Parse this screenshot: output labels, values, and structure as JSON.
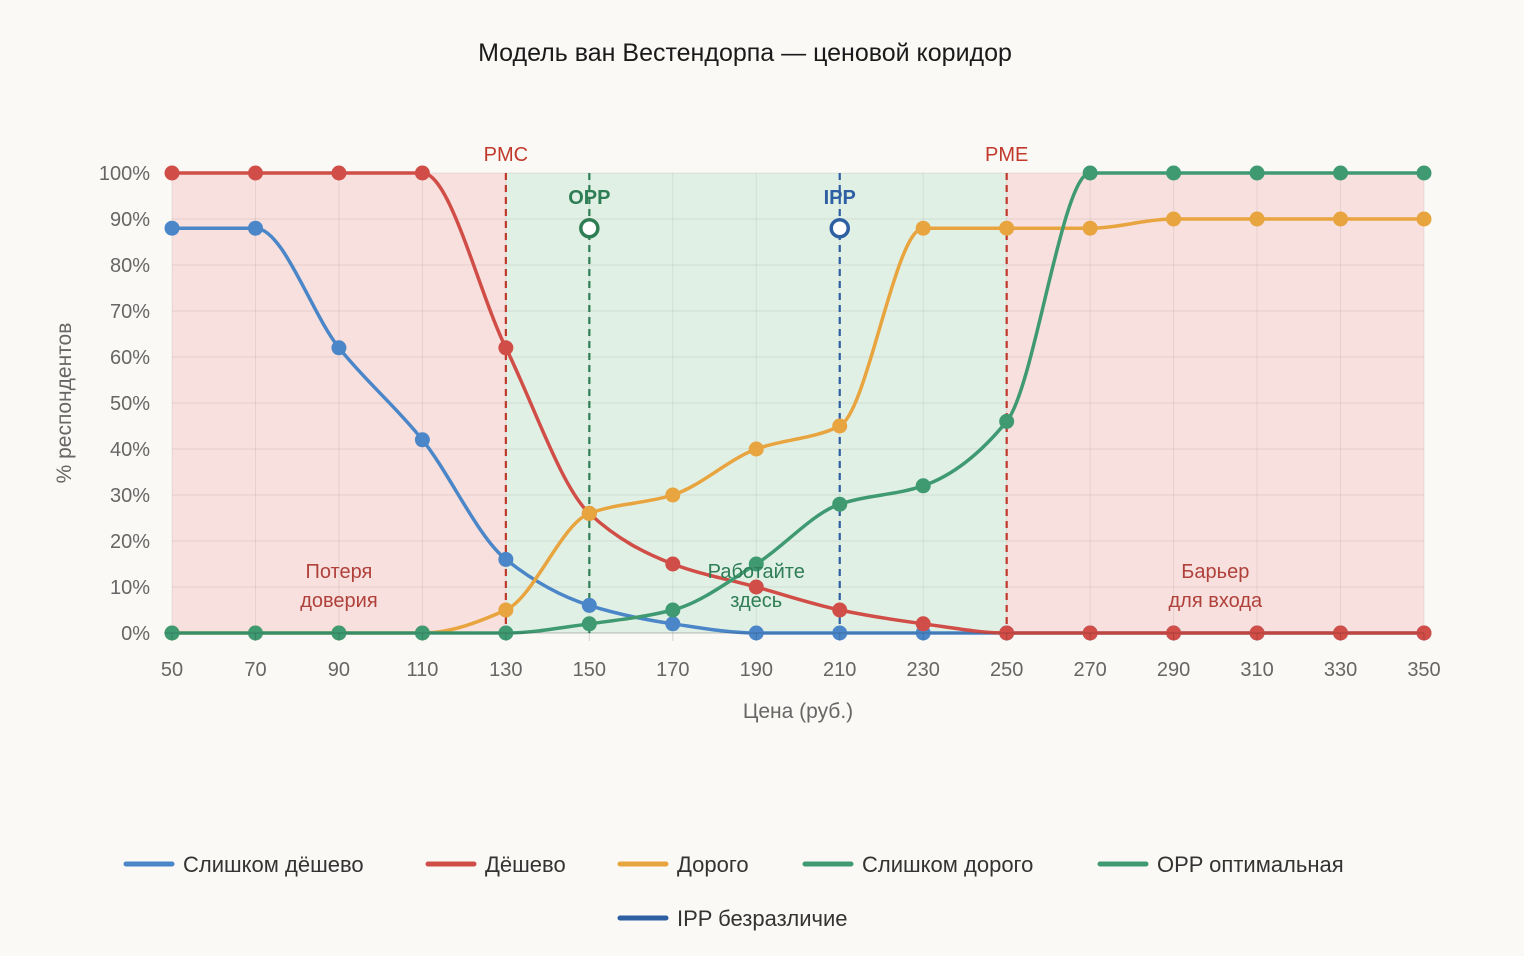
{
  "chart_data": {
    "type": "line",
    "title": "Модель ван Вестендорпа — ценовой коридор",
    "xlabel": "Цена (руб.)",
    "ylabel": "% респондентов",
    "x": [
      50,
      70,
      90,
      110,
      130,
      150,
      170,
      190,
      210,
      230,
      250,
      270,
      290,
      310,
      330,
      350
    ],
    "ylim": [
      0,
      100
    ],
    "y_ticks": [
      "0%",
      "10%",
      "20%",
      "30%",
      "40%",
      "50%",
      "60%",
      "70%",
      "80%",
      "90%",
      "100%"
    ],
    "x_ticks": [
      "50",
      "70",
      "90",
      "110",
      "130",
      "150",
      "170",
      "190",
      "210",
      "230",
      "250",
      "270",
      "290",
      "310",
      "330",
      "350"
    ],
    "grid": true,
    "legend_position": "bottom",
    "series": [
      {
        "name": "Слишком дёшево",
        "color": "#4a86c8",
        "values": [
          88,
          88,
          62,
          42,
          16,
          6,
          2,
          0,
          0,
          0,
          0,
          0,
          0,
          0,
          0,
          0
        ]
      },
      {
        "name": "Дёшево",
        "color": "#d04e47",
        "values": [
          100,
          100,
          100,
          100,
          62,
          26,
          15,
          10,
          5,
          2,
          0,
          0,
          0,
          0,
          0,
          0
        ]
      },
      {
        "name": "Дорого",
        "color": "#e8a43e",
        "values": [
          0,
          0,
          0,
          0,
          5,
          26,
          30,
          40,
          45,
          88,
          88,
          88,
          90,
          90,
          90,
          90
        ]
      },
      {
        "name": "Слишком дорого",
        "color": "#3f9a72",
        "values": [
          0,
          0,
          0,
          0,
          0,
          2,
          5,
          15,
          28,
          32,
          46,
          100,
          100,
          100,
          100,
          100
        ]
      }
    ],
    "markers": [
      {
        "name": "OPP оптимальная",
        "label": "OPP",
        "x": 150,
        "y": 88,
        "color": "#2e7d55"
      },
      {
        "name": "IPP безразличие",
        "label": "IPP",
        "x": 210,
        "y": 88,
        "color": "#2e5fa3"
      }
    ],
    "vlines": [
      {
        "label": "PMC",
        "x": 130,
        "color": "#c0392b"
      },
      {
        "label": "OPP",
        "x": 150,
        "color": "#2e7d55"
      },
      {
        "label": "IPP",
        "x": 210,
        "color": "#2e5fa3"
      },
      {
        "label": "PME",
        "x": 250,
        "color": "#c0392b"
      }
    ],
    "zones": [
      {
        "label_lines": [
          "Потеря",
          "доверия"
        ],
        "x_from": 50,
        "x_to": 130,
        "color": "#f7dcd9",
        "text_color": "#b0403a",
        "label_x": 90
      },
      {
        "label_lines": [
          "Работайте",
          "здесь"
        ],
        "x_from": 130,
        "x_to": 250,
        "color": "#dcefe2",
        "text_color": "#2e7d55",
        "label_x": 190
      },
      {
        "label_lines": [
          "Барьер",
          "для входа"
        ],
        "x_from": 250,
        "x_to": 350,
        "color": "#f7dcd9",
        "text_color": "#b0403a",
        "label_x": 300
      }
    ],
    "legend": [
      {
        "label": "Слишком дёшево",
        "color": "#4a86c8"
      },
      {
        "label": "Дёшево",
        "color": "#d04e47"
      },
      {
        "label": "Дорого",
        "color": "#e8a43e"
      },
      {
        "label": "Слишком дорого",
        "color": "#3f9a72"
      },
      {
        "label": "OPP оптимальная",
        "color": "#3f9a72"
      },
      {
        "label": "IPP безразличие",
        "color": "#2e5fa3"
      }
    ]
  }
}
